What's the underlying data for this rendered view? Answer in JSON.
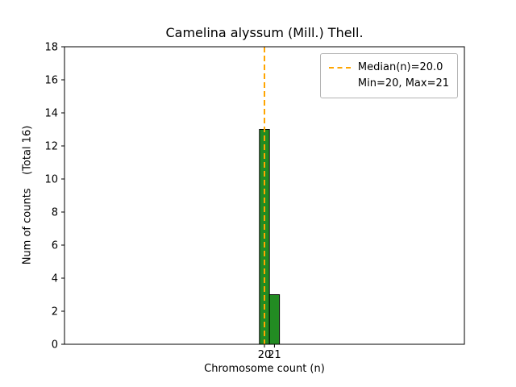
{
  "chart_data": {
    "type": "bar",
    "title": "Camelina alyssum (Mill.) Thell.",
    "xlabel": "Chromosome count (n)",
    "ylabel": "Num of counts    (Total 16)",
    "x": [
      20,
      21
    ],
    "counts": [
      13,
      3
    ],
    "total_counts": 16,
    "median": 20.0,
    "min": 20,
    "max": 21,
    "xlim": [
      0,
      40
    ],
    "ylim": [
      0,
      18
    ],
    "xticks": [
      20,
      21
    ],
    "yticks": [
      0,
      2,
      4,
      6,
      8,
      10,
      12,
      14,
      16,
      18
    ],
    "bar_width": 1.0,
    "bar_color": "#228B22",
    "bar_edge_color": "#000000",
    "median_line_color": "#FFA500",
    "median_line_style": "dashed",
    "grid": false,
    "legend_position": "upper right",
    "legend": [
      "Median(n)=20.0",
      "Min=20, Max=21"
    ]
  }
}
